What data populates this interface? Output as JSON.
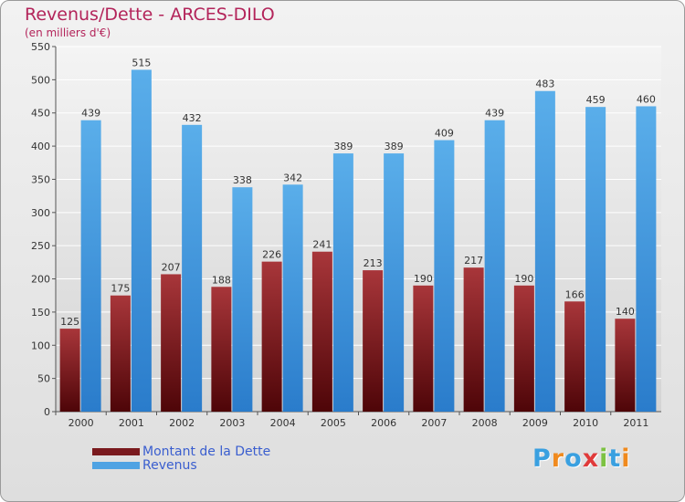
{
  "chart_data": {
    "type": "bar",
    "title": "Revenus/Dette - ARCES-DILO",
    "subtitle": "(en milliers d'€)",
    "categories": [
      "2000",
      "2001",
      "2002",
      "2003",
      "2004",
      "2005",
      "2006",
      "2007",
      "2008",
      "2009",
      "2010",
      "2011"
    ],
    "series": [
      {
        "name": "Montant de la Dette",
        "color": "#7a1a1e",
        "values": [
          125,
          175,
          207,
          188,
          226,
          241,
          213,
          190,
          217,
          190,
          166,
          140
        ]
      },
      {
        "name": "Revenus",
        "color": "#4fa3e3",
        "values": [
          439,
          515,
          432,
          338,
          342,
          389,
          389,
          409,
          439,
          483,
          459,
          460
        ]
      }
    ],
    "ylim": [
      0,
      550
    ],
    "yticks": [
      0,
      50,
      100,
      150,
      200,
      250,
      300,
      350,
      400,
      450,
      500,
      550
    ],
    "grid": true,
    "legend_position": "bottom-left"
  },
  "logo": {
    "letters": [
      "P",
      "r",
      "o",
      "x",
      "i",
      "t",
      "i"
    ],
    "colors": [
      "#3aa0e0",
      "#f08a1e",
      "#3aa0e0",
      "#e03a3a",
      "#7cc242",
      "#3aa0e0",
      "#f08a1e"
    ]
  }
}
